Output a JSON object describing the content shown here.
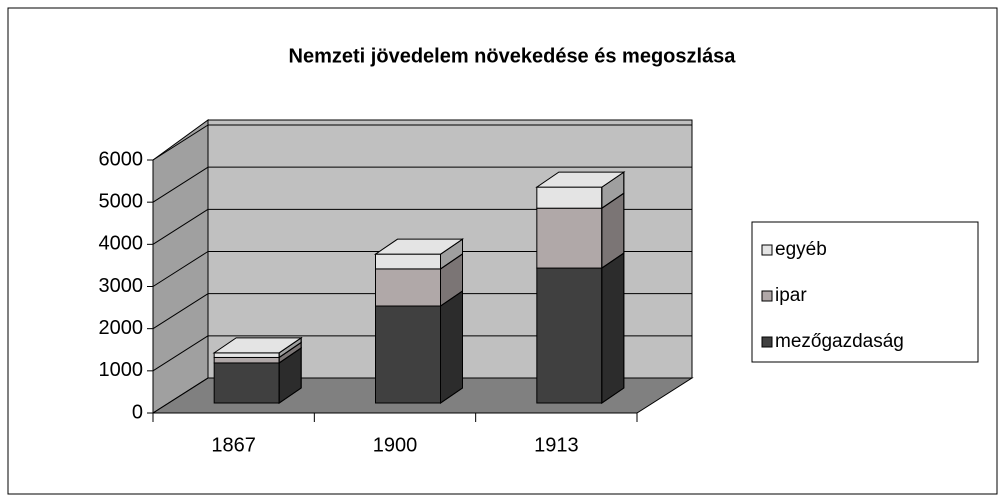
{
  "chart_data": {
    "type": "bar3d_stacked",
    "title": "Nemzeti jövedelem  növekedése és megoszlása",
    "categories": [
      "1867",
      "1900",
      "1913"
    ],
    "series": [
      {
        "name": "mezőgazdaság",
        "color": "#404040",
        "values": [
          950,
          2300,
          3200
        ]
      },
      {
        "name": "ipar",
        "color": "#b0a8a8",
        "values": [
          130,
          880,
          1420
        ]
      },
      {
        "name": "egyéb",
        "color": "#e4e4e4",
        "values": [
          110,
          350,
          500
        ]
      }
    ],
    "ylim": [
      0,
      6000
    ],
    "yticks": [
      0,
      1000,
      2000,
      3000,
      4000,
      5000,
      6000
    ],
    "grid": true,
    "legend": "right"
  }
}
